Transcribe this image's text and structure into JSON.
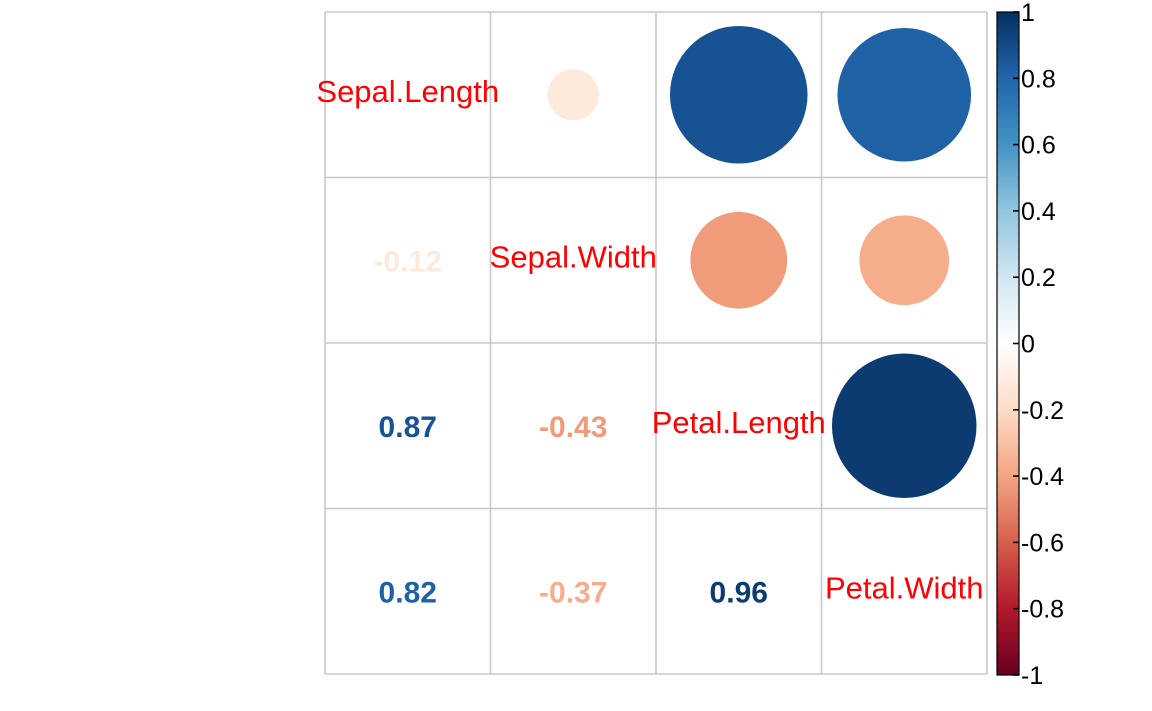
{
  "chart_data": {
    "type": "heatmap",
    "variables": [
      "Sepal.Length",
      "Sepal.Width",
      "Petal.Length",
      "Petal.Width"
    ],
    "matrix": [
      [
        1,
        -0.12,
        0.87,
        0.82
      ],
      [
        -0.12,
        1,
        -0.43,
        -0.37
      ],
      [
        0.87,
        -0.43,
        1,
        0.96
      ],
      [
        0.82,
        -0.37,
        0.96,
        1
      ]
    ],
    "lower_labels": [
      {
        "row": 1,
        "col": 0,
        "value": -0.12,
        "text": "-0.12"
      },
      {
        "row": 2,
        "col": 0,
        "value": 0.87,
        "text": "0.87"
      },
      {
        "row": 2,
        "col": 1,
        "value": -0.43,
        "text": "-0.43"
      },
      {
        "row": 3,
        "col": 0,
        "value": 0.82,
        "text": "0.82"
      },
      {
        "row": 3,
        "col": 1,
        "value": -0.37,
        "text": "-0.37"
      },
      {
        "row": 3,
        "col": 2,
        "value": 0.96,
        "text": "0.96"
      }
    ],
    "upper_method": "circle",
    "lower_method": "number",
    "diagonal": "variable names",
    "colorbar": {
      "range": [
        -1,
        1
      ],
      "ticks": [
        "1",
        "0.8",
        "0.6",
        "0.4",
        "0.2",
        "0",
        "-0.2",
        "-0.4",
        "-0.6",
        "-0.8",
        "-1"
      ],
      "tick_values": [
        1,
        0.8,
        0.6,
        0.4,
        0.2,
        0,
        -0.2,
        -0.4,
        -0.6,
        -0.8,
        -1
      ],
      "colors": [
        "#67001f",
        "#b2182b",
        "#d6604d",
        "#f4a582",
        "#fddbc7",
        "#ffffff",
        "#d1e5f0",
        "#92c5de",
        "#4393c3",
        "#2166ac",
        "#053061"
      ]
    },
    "label_color": "#ff0000",
    "grid_color": "#c8c8c8"
  }
}
